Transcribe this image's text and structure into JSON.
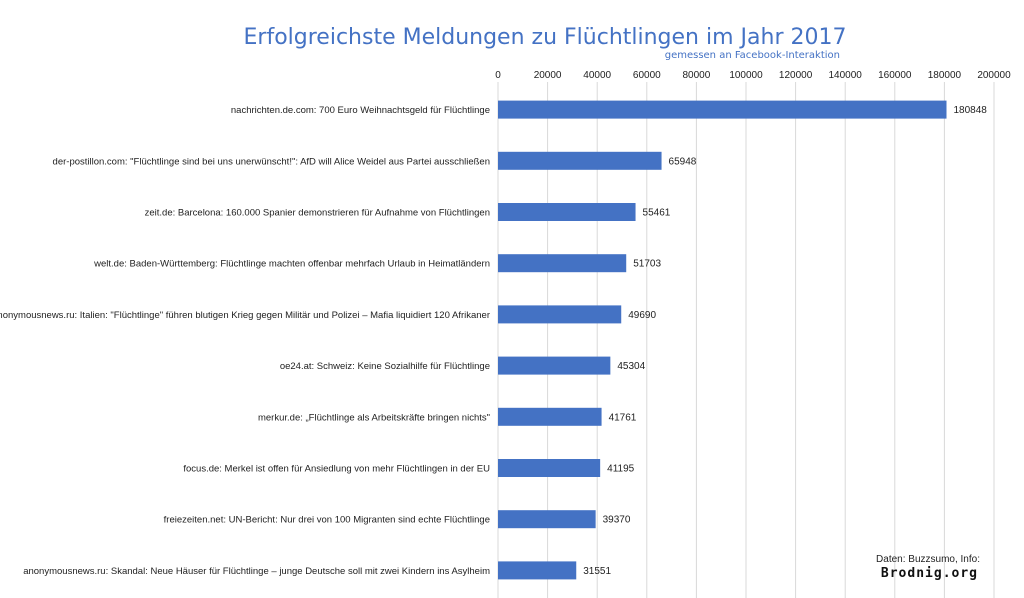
{
  "chart_data": {
    "type": "bar",
    "orientation": "horizontal",
    "title": "Erfolgreichste Meldungen zu Flüchtlingen im Jahr 2017",
    "subtitle": "gemessen an Facebook-Interaktion",
    "categories": [
      "nachrichten.de.com: 700 Euro Weihnachtsgeld für Flüchtlinge",
      "der-postillon.com: \"Flüchtlinge sind bei uns unerwünscht!\": AfD will Alice Weidel aus Partei ausschließen",
      "zeit.de: Barcelona: 160.000 Spanier demonstrieren für Aufnahme von Flüchtlingen",
      "welt.de: Baden-Württemberg: Flüchtlinge machten offenbar mehrfach Urlaub in Heimatländern",
      "anonymousnews.ru: Italien: \"Flüchtlinge\" führen blutigen Krieg gegen Militär und Polizei – Mafia liquidiert 120 Afrikaner",
      "oe24.at: Schweiz: Keine Sozialhilfe für Flüchtlinge",
      "merkur.de: „Flüchtlinge als Arbeitskräfte bringen nichts\"",
      "focus.de: Merkel ist offen für Ansiedlung von mehr Flüchtlingen in der EU",
      "freiezeiten.net: UN-Bericht: Nur drei von 100 Migranten sind echte Flüchtlinge",
      "anonymousnews.ru: Skandal: Neue Häuser für Flüchtlinge – junge Deutsche soll mit zwei Kindern ins Asylheim"
    ],
    "values": [
      180848,
      65948,
      55461,
      51703,
      49690,
      45304,
      41761,
      41195,
      39370,
      31551
    ],
    "xlim": [
      0,
      200000
    ],
    "xticks": [
      0,
      20000,
      40000,
      60000,
      80000,
      100000,
      120000,
      140000,
      160000,
      180000,
      200000
    ],
    "axis_position": "top",
    "grid": true,
    "data_labels": true,
    "bar_color": "#4472c4"
  },
  "credit": {
    "source_line": "Daten: Buzzsumo, Info:",
    "brand": "Brodnig.org"
  }
}
